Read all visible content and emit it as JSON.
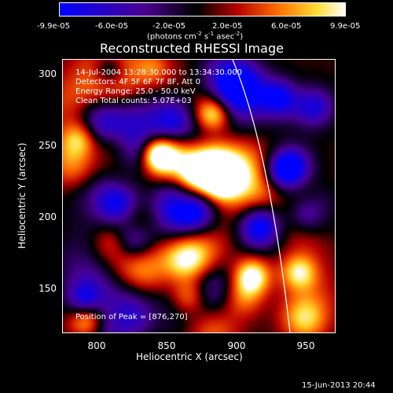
{
  "colorbar": {
    "ticks": [
      "-9.9e-05",
      "-6.0e-05",
      "-2.0e-05",
      "2.0e-05",
      "6.0e-05",
      "9.9e-05"
    ],
    "units_label": "(photons cm",
    "units_sup1": "-2",
    "units_s": " s",
    "units_sup2": "-1",
    "units_asec": " asec",
    "units_sup3": "-2",
    "units_close": ")",
    "colors": [
      "#0000ff",
      "#3a0080",
      "#000000",
      "#b30000",
      "#ff6600",
      "#ffdd33",
      "#ffffff"
    ]
  },
  "title": "Reconstructed RHESSI Image",
  "info": {
    "time_range": "14-Jul-2004 13:28:30.000 to 13:34:30.000",
    "detectors": "Detectors: 4F 5F 6F 7F 8F, Att 0",
    "energy": "Energy Range: 25.0 - 50.0 keV",
    "clean": "Clean     Total counts: 5.07E+03",
    "peak": "Position of Peak = [876,270]"
  },
  "axes": {
    "xlabel": "Heliocentric X (arcsec)",
    "ylabel": "Heliocentric Y (arcsec)",
    "xticks": [
      "800",
      "850",
      "900",
      "950"
    ],
    "yticks": [
      "300",
      "250",
      "200",
      "150"
    ],
    "xlim": [
      775,
      965
    ],
    "ylim": [
      117,
      310
    ]
  },
  "timestamp": "15-Jun-2013 20:44"
}
